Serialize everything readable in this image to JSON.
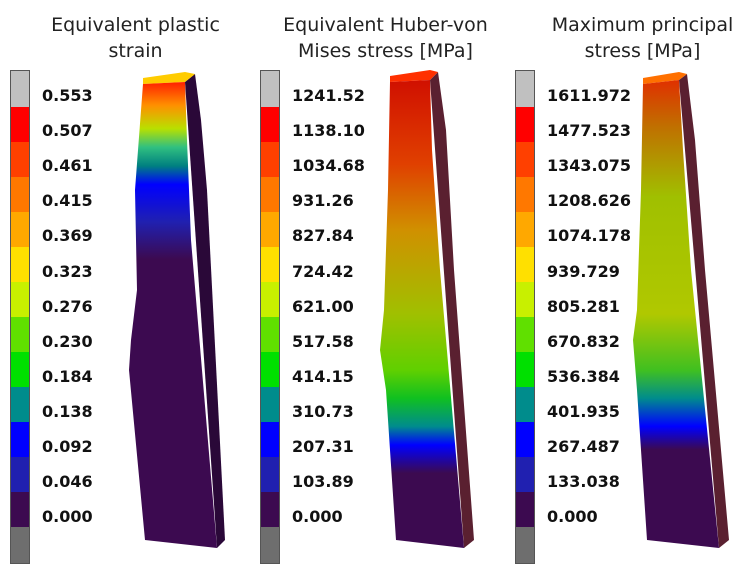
{
  "colors": {
    "scale": [
      "#c0c0c0",
      "#ff0000",
      "#ff4000",
      "#ff7800",
      "#ffa800",
      "#ffe000",
      "#c8f000",
      "#60e000",
      "#00e000",
      "#008c8c",
      "#0000ff",
      "#2020b0",
      "#3c0a50",
      "#6e6e6e"
    ]
  },
  "panels": [
    {
      "title": "Equivalent plastic\nstrain",
      "ticks": [
        "0.553",
        "0.507",
        "0.461",
        "0.415",
        "0.369",
        "0.323",
        "0.276",
        "0.230",
        "0.184",
        "0.138",
        "0.092",
        "0.046",
        "0.000"
      ]
    },
    {
      "title": "Equivalent Huber-von\nMises stress [MPa]",
      "ticks": [
        "1241.52",
        "1138.10",
        "1034.68",
        "931.26",
        "827.84",
        "724.42",
        "621.00",
        "517.58",
        "414.15",
        "310.73",
        "207.31",
        "103.89",
        "0.000"
      ]
    },
    {
      "title": "Maximum principal\nstress [MPa]",
      "ticks": [
        "1611.972",
        "1477.523",
        "1343.075",
        "1208.626",
        "1074.178",
        "939.729",
        "805.281",
        "670.832",
        "536.384",
        "401.935",
        "267.487",
        "133.038",
        "0.000"
      ]
    }
  ]
}
